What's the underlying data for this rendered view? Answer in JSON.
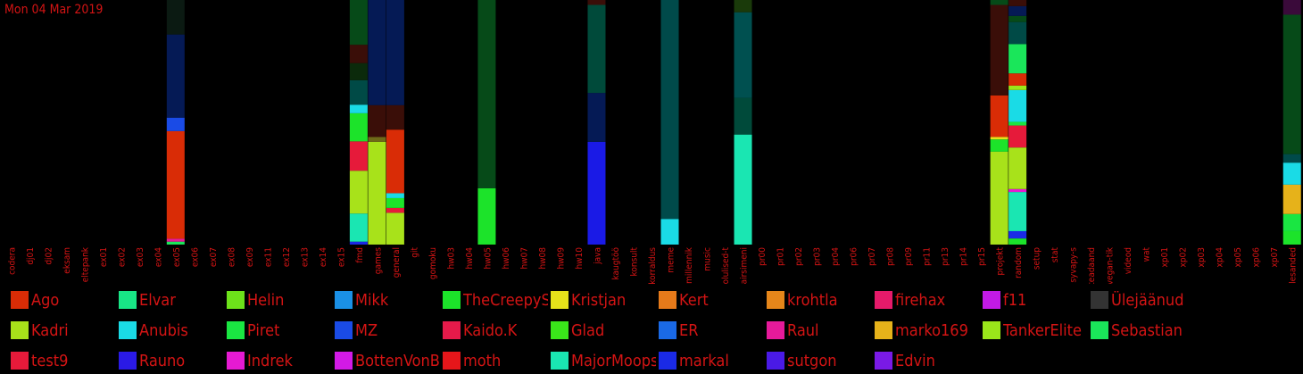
{
  "date_label": "Mon 04 Mar 2019",
  "colors": {
    "background": "#000000",
    "text": "#d41414"
  },
  "chart_data": {
    "type": "bar",
    "stacked": true,
    "y_unit": "fraction of channel activity",
    "ylim": [
      0,
      1
    ],
    "grid": false,
    "legend_position": "bottom",
    "categories": [
      "codera",
      "dj01",
      "dj02",
      "eksam",
      "eltepank",
      "ex01",
      "ex02",
      "ex03",
      "ex04",
      "ex05",
      "ex06",
      "ex07",
      "ex08",
      "ex09",
      "ex11",
      "ex12",
      "ex13",
      "ex14",
      "ex15",
      "fmd",
      "games",
      "general",
      "git",
      "gomoku",
      "hw03",
      "hw04",
      "hw05",
      "hw06",
      "hw07",
      "hw08",
      "hw09",
      "hw10",
      "java",
      "kaugtöö",
      "konsult",
      "korraldus",
      "meme",
      "millennik",
      "music",
      "olulised-t",
      "pairsimeni",
      "pr00",
      "pr01",
      "pr02",
      "pr03",
      "pr04",
      "pr06",
      "pr07",
      "pr08",
      "pr09",
      "pr11",
      "pr13",
      "pr14",
      "pr15",
      "projekt",
      "random",
      "setup",
      "stat",
      "syvapy-s",
      "teadaand",
      "vegan-tik",
      "videod",
      "wat",
      "xp01",
      "xp02",
      "xp03",
      "xp04",
      "xp05",
      "xp06",
      "xp07",
      "ülesanded"
    ],
    "legend": [
      {
        "name": "Ago",
        "color": "#d92c06"
      },
      {
        "name": "Elvar",
        "color": "#18e686"
      },
      {
        "name": "Helin",
        "color": "#6de21a"
      },
      {
        "name": "Mikk",
        "color": "#1a90e6"
      },
      {
        "name": "TheCreepySheep",
        "color": "#1ce32a"
      },
      {
        "name": "Kristjan",
        "color": "#e6e21a"
      },
      {
        "name": "Kert",
        "color": "#e67a1a"
      },
      {
        "name": "krohtla",
        "color": "#e6861a"
      },
      {
        "name": "firehax",
        "color": "#e61a6a"
      },
      {
        "name": "f11",
        "color": "#c21ae6"
      },
      {
        "name": "Ülejäänud",
        "color": "#333333"
      },
      {
        "name": "Kadri",
        "color": "#a8e21a"
      },
      {
        "name": "Anubis",
        "color": "#1adbe6"
      },
      {
        "name": "Piret",
        "color": "#1ae642"
      },
      {
        "name": "MZ",
        "color": "#1a4be6"
      },
      {
        "name": "Kaido.K",
        "color": "#e61a4a"
      },
      {
        "name": "Glad",
        "color": "#3ae61a"
      },
      {
        "name": "ER",
        "color": "#1a6ae6"
      },
      {
        "name": "Raul",
        "color": "#e61a9a"
      },
      {
        "name": "marko169",
        "color": "#e6b21a"
      },
      {
        "name": "TankerElite",
        "color": "#9ae61a"
      },
      {
        "name": "Sebastian",
        "color": "#1ae65a"
      },
      {
        "name": "test9",
        "color": "#e61a3a"
      },
      {
        "name": "Rauno",
        "color": "#2a1ae6"
      },
      {
        "name": "Indrek",
        "color": "#e61ad2"
      },
      {
        "name": "BottenVonBot",
        "color": "#d21ae6"
      },
      {
        "name": "moth",
        "color": "#e6161a"
      },
      {
        "name": "MajorMoopsy",
        "color": "#1ae6b2"
      },
      {
        "name": "markal",
        "color": "#1a2ae6"
      },
      {
        "name": "sutgon",
        "color": "#4a1ae6"
      },
      {
        "name": "Edvin",
        "color": "#7a1ae6"
      }
    ],
    "bars": [
      {
        "category": "ex05",
        "segments": [
          {
            "value": 0.012,
            "color": "#1ae65a"
          },
          {
            "value": 0.012,
            "color": "#e61a9a"
          },
          {
            "value": 0.44,
            "color": "#d92c06"
          },
          {
            "value": 0.055,
            "color": "#1a4be6"
          },
          {
            "value": 0.34,
            "color": "#051a55"
          },
          {
            "value": 0.141,
            "color": "#0b1a12"
          }
        ]
      },
      {
        "category": "fmd",
        "segments": [
          {
            "value": 0.012,
            "color": "#1a2ae6"
          },
          {
            "value": 0.115,
            "color": "#1ae6b2"
          },
          {
            "value": 0.175,
            "color": "#a8e21a"
          },
          {
            "value": 0.12,
            "color": "#e61a3a"
          },
          {
            "value": 0.115,
            "color": "#1ce32a"
          },
          {
            "value": 0.035,
            "color": "#1adbe6"
          },
          {
            "value": 0.1,
            "color": "#004a46"
          },
          {
            "value": 0.07,
            "color": "#0b2a0b"
          },
          {
            "value": 0.075,
            "color": "#3a0e08"
          },
          {
            "value": 0.2,
            "color": "#064a18"
          },
          {
            "value": 0.025,
            "color": "#0a2244"
          },
          {
            "value": 0.023,
            "color": "#0a2a78"
          }
        ]
      },
      {
        "category": "games",
        "segments": [
          {
            "value": 0.42,
            "color": "#a8e21a"
          },
          {
            "value": 0.02,
            "color": "#6e6a18"
          },
          {
            "value": 0.13,
            "color": "#3a0e08"
          },
          {
            "value": 0.43,
            "color": "#051a55"
          }
        ]
      },
      {
        "category": "general",
        "segments": [
          {
            "value": 0.13,
            "color": "#a8e21a"
          },
          {
            "value": 0.02,
            "color": "#e61a3a"
          },
          {
            "value": 0.04,
            "color": "#1ce32a"
          },
          {
            "value": 0.02,
            "color": "#1adbe6"
          },
          {
            "value": 0.26,
            "color": "#d92c06"
          },
          {
            "value": 0.1,
            "color": "#3a0e08"
          },
          {
            "value": 0.43,
            "color": "#051a55"
          }
        ]
      },
      {
        "category": "hw05",
        "segments": [
          {
            "value": 0.23,
            "color": "#1ce32a"
          },
          {
            "value": 0.77,
            "color": "#064a18"
          }
        ]
      },
      {
        "category": "java",
        "segments": [
          {
            "value": 0.42,
            "color": "#1a1ae6"
          },
          {
            "value": 0.2,
            "color": "#051a55"
          },
          {
            "value": 0.36,
            "color": "#004a3a"
          },
          {
            "value": 0.02,
            "color": "#3a0e08"
          }
        ]
      },
      {
        "category": "meme",
        "segments": [
          {
            "value": 0.105,
            "color": "#1adbe6"
          },
          {
            "value": 0.895,
            "color": "#004a4a"
          }
        ]
      },
      {
        "category": "pairsimeni",
        "segments": [
          {
            "value": 0.45,
            "color": "#1ae6b2"
          },
          {
            "value": 0.15,
            "color": "#004a3a"
          },
          {
            "value": 0.35,
            "color": "#005050"
          },
          {
            "value": 0.05,
            "color": "#1a3a0a"
          }
        ]
      },
      {
        "category": "projekt",
        "segments": [
          {
            "value": 0.38,
            "color": "#a8e21a"
          },
          {
            "value": 0.05,
            "color": "#1ce32a"
          },
          {
            "value": 0.01,
            "color": "#e6e21a"
          },
          {
            "value": 0.17,
            "color": "#d92c06"
          },
          {
            "value": 0.37,
            "color": "#3a0e08"
          },
          {
            "value": 0.02,
            "color": "#064a18"
          }
        ]
      },
      {
        "category": "random",
        "segments": [
          {
            "value": 0.025,
            "color": "#1ce32a"
          },
          {
            "value": 0.03,
            "color": "#1a2ae6"
          },
          {
            "value": 0.16,
            "color": "#1ae6b2"
          },
          {
            "value": 0.012,
            "color": "#e61ad2"
          },
          {
            "value": 0.17,
            "color": "#a8e21a"
          },
          {
            "value": 0.09,
            "color": "#e61a3a"
          },
          {
            "value": 0.015,
            "color": "#1ae642"
          },
          {
            "value": 0.13,
            "color": "#1adbe6"
          },
          {
            "value": 0.018,
            "color": "#9ae61a"
          },
          {
            "value": 0.05,
            "color": "#d92c06"
          },
          {
            "value": 0.12,
            "color": "#1ae65a"
          },
          {
            "value": 0.09,
            "color": "#004a46"
          },
          {
            "value": 0.025,
            "color": "#064a18"
          },
          {
            "value": 0.04,
            "color": "#051a55"
          },
          {
            "value": 0.025,
            "color": "#3a0e08"
          }
        ]
      },
      {
        "category": "ülesanded",
        "segments": [
          {
            "value": 0.055,
            "color": "#1ce32a"
          },
          {
            "value": 0.07,
            "color": "#1ae642"
          },
          {
            "value": 0.12,
            "color": "#e6b21a"
          },
          {
            "value": 0.09,
            "color": "#1adbe6"
          },
          {
            "value": 0.035,
            "color": "#004a4a"
          },
          {
            "value": 0.57,
            "color": "#064a18"
          },
          {
            "value": 0.06,
            "color": "#3a0a3a"
          }
        ]
      }
    ]
  }
}
